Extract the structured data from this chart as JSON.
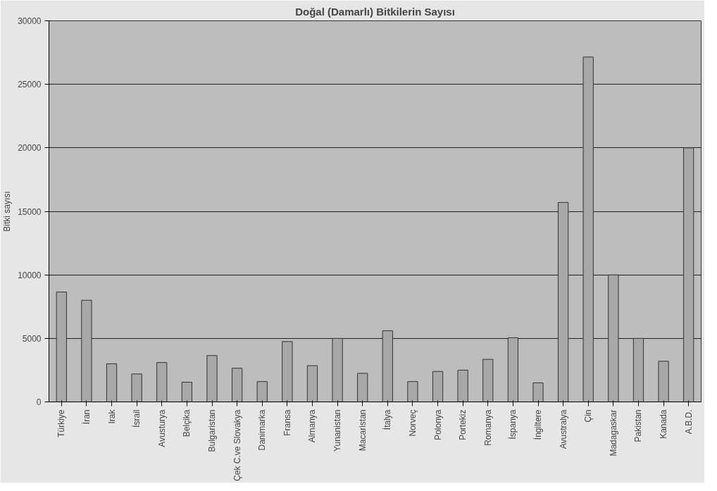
{
  "chart_data": {
    "type": "bar",
    "title": "Doğal (Damarlı) Bitkilerin Sayısı",
    "ylabel": "Bitki sayısı",
    "categories": [
      "Türkiye",
      "İran",
      "Irak",
      "İsrail",
      "Avusturya",
      "Belçika",
      "Bulgaristan",
      "Çek C.ve Slovakya",
      "Danimarka",
      "Fransa",
      "Almanya",
      "Yunanistan",
      "Macaristan",
      "İtalya",
      "Norveç",
      "Polonya",
      "Portekiz",
      "Romanya",
      "İspanya",
      "İngiltere",
      "Avustralya",
      "Çin",
      "Madagaskar",
      "Pakistan",
      "Kanada",
      "A.B.D."
    ],
    "values": [
      8650,
      8000,
      3000,
      2200,
      3100,
      1550,
      3650,
      2650,
      1600,
      4750,
      2850,
      5000,
      2250,
      5600,
      1600,
      2400,
      2500,
      3350,
      5050,
      1500,
      15700,
      27150,
      10000,
      5000,
      3200,
      20000
    ],
    "color": "#a8a8a8",
    "ylim": [
      0,
      30000
    ],
    "yticks": [
      0,
      5000,
      10000,
      15000,
      20000,
      25000,
      30000
    ],
    "grid": "y"
  }
}
